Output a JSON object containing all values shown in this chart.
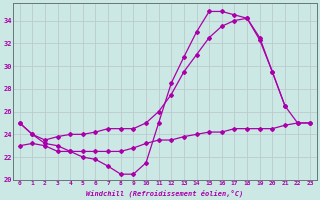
{
  "bg_color": "#cce8e4",
  "line_color": "#aa00aa",
  "grid_color": "#bbcccc",
  "ylim": [
    20,
    35
  ],
  "xlim": [
    -0.5,
    23.5
  ],
  "yticks": [
    20,
    22,
    24,
    26,
    28,
    30,
    32,
    34
  ],
  "xticks": [
    0,
    1,
    2,
    3,
    4,
    5,
    6,
    7,
    8,
    9,
    10,
    11,
    12,
    13,
    14,
    15,
    16,
    17,
    18,
    19,
    20,
    21,
    22,
    23
  ],
  "xlabel": "Windchill (Refroidissement éolien,°C)",
  "line1_x": [
    0,
    1,
    2,
    3,
    4,
    5,
    6,
    7,
    8,
    9,
    10,
    11,
    12,
    13,
    14,
    15,
    16,
    17,
    18,
    19,
    20,
    21
  ],
  "line1_y": [
    25.0,
    24.0,
    23.2,
    23.0,
    22.5,
    22.0,
    21.8,
    21.2,
    20.5,
    20.5,
    21.5,
    25.0,
    28.5,
    30.8,
    33.0,
    34.8,
    34.8,
    34.5,
    34.2,
    32.3,
    29.5,
    26.5
  ],
  "line2_x": [
    0,
    1,
    2,
    3,
    4,
    5,
    6,
    7,
    8,
    9,
    10,
    11,
    12,
    13,
    14,
    15,
    16,
    17,
    18,
    19,
    20,
    21,
    22,
    23
  ],
  "line2_y": [
    25.0,
    24.0,
    23.5,
    23.8,
    24.0,
    24.0,
    24.2,
    24.5,
    24.5,
    24.5,
    25.0,
    26.0,
    27.5,
    29.5,
    31.0,
    32.5,
    33.5,
    34.0,
    34.2,
    32.5,
    29.5,
    26.5,
    25.0,
    25.0
  ],
  "line3_x": [
    0,
    1,
    2,
    3,
    4,
    5,
    6,
    7,
    8,
    9,
    10,
    11,
    12,
    13,
    14,
    15,
    16,
    17,
    18,
    19,
    20,
    21,
    22,
    23
  ],
  "line3_y": [
    23.0,
    23.2,
    23.0,
    22.5,
    22.5,
    22.5,
    22.5,
    22.5,
    22.5,
    22.8,
    23.2,
    23.5,
    23.5,
    23.8,
    24.0,
    24.2,
    24.2,
    24.5,
    24.5,
    24.5,
    24.5,
    24.8,
    25.0,
    25.0
  ]
}
